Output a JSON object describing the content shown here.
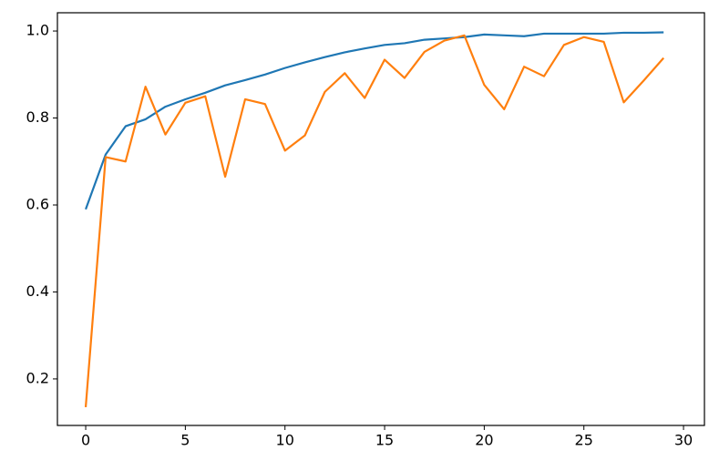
{
  "chart_data": {
    "type": "line",
    "x": [
      0,
      1,
      2,
      3,
      4,
      5,
      6,
      7,
      8,
      9,
      10,
      11,
      12,
      13,
      14,
      15,
      16,
      17,
      18,
      19,
      20,
      21,
      22,
      23,
      24,
      25,
      26,
      27,
      28,
      29
    ],
    "series": [
      {
        "color": "#1f77b4",
        "values": [
          0.59,
          0.716,
          0.781,
          0.797,
          0.826,
          0.843,
          0.858,
          0.875,
          0.887,
          0.9,
          0.915,
          0.928,
          0.94,
          0.951,
          0.96,
          0.968,
          0.972,
          0.98,
          0.983,
          0.986,
          0.992,
          0.99,
          0.988,
          0.994,
          0.994,
          0.994,
          0.994,
          0.996,
          0.996,
          0.997
        ]
      },
      {
        "color": "#ff7f0e",
        "values": [
          0.135,
          0.71,
          0.7,
          0.872,
          0.762,
          0.835,
          0.85,
          0.665,
          0.843,
          0.832,
          0.725,
          0.76,
          0.86,
          0.903,
          0.846,
          0.934,
          0.892,
          0.952,
          0.978,
          0.99,
          0.876,
          0.82,
          0.918,
          0.896,
          0.968,
          0.986,
          0.975,
          0.836,
          0.886,
          0.938
        ]
      }
    ],
    "xlim": [
      -1.42,
      31.05
    ],
    "xticks": [
      0,
      5,
      10,
      15,
      20,
      25,
      30
    ],
    "ylim": [
      0.093,
      1.042
    ],
    "yticks": [
      0.2,
      0.4,
      0.6,
      0.8,
      {
        "value": 1,
        "label": "1.0"
      }
    ],
    "grid": false
  }
}
